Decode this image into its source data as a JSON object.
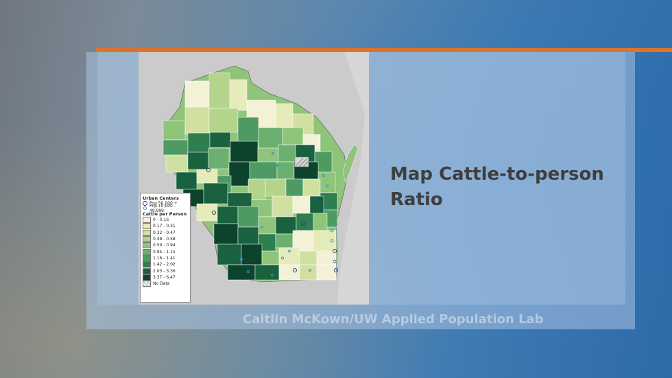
{
  "slide": {
    "title_line1": "Map Cattle-to-person",
    "title_line2": "Ratio",
    "credit": "Caitlin McKown/UW Applied Population Lab",
    "accent_color": "#d8742f"
  },
  "legend": {
    "urban_heading": "Urban Centers",
    "urban_items": [
      "Pop 50,000 +",
      "Pop 10,000 - 49,999"
    ],
    "cattle_heading": "Cattle per Person",
    "classes": [
      {
        "label": "0 - 0.16",
        "color": "#f3f1d6"
      },
      {
        "label": "0.17 - 0.31",
        "color": "#e6ebba"
      },
      {
        "label": "0.32 - 0.47",
        "color": "#d0e0a0"
      },
      {
        "label": "0.48 - 0.58",
        "color": "#b4d48c"
      },
      {
        "label": "0.59 - 0.94",
        "color": "#8fc47b"
      },
      {
        "label": "0.95 - 1.15",
        "color": "#6cb070"
      },
      {
        "label": "1.16 - 1.41",
        "color": "#4e9a62"
      },
      {
        "label": "1.42 - 2.02",
        "color": "#2f7e4f"
      },
      {
        "label": "2.03 - 3.36",
        "color": "#1a6140"
      },
      {
        "label": "3.37 - 6.47",
        "color": "#0c432c"
      },
      {
        "label": "No Data",
        "color": "#d8d8d8"
      }
    ]
  }
}
